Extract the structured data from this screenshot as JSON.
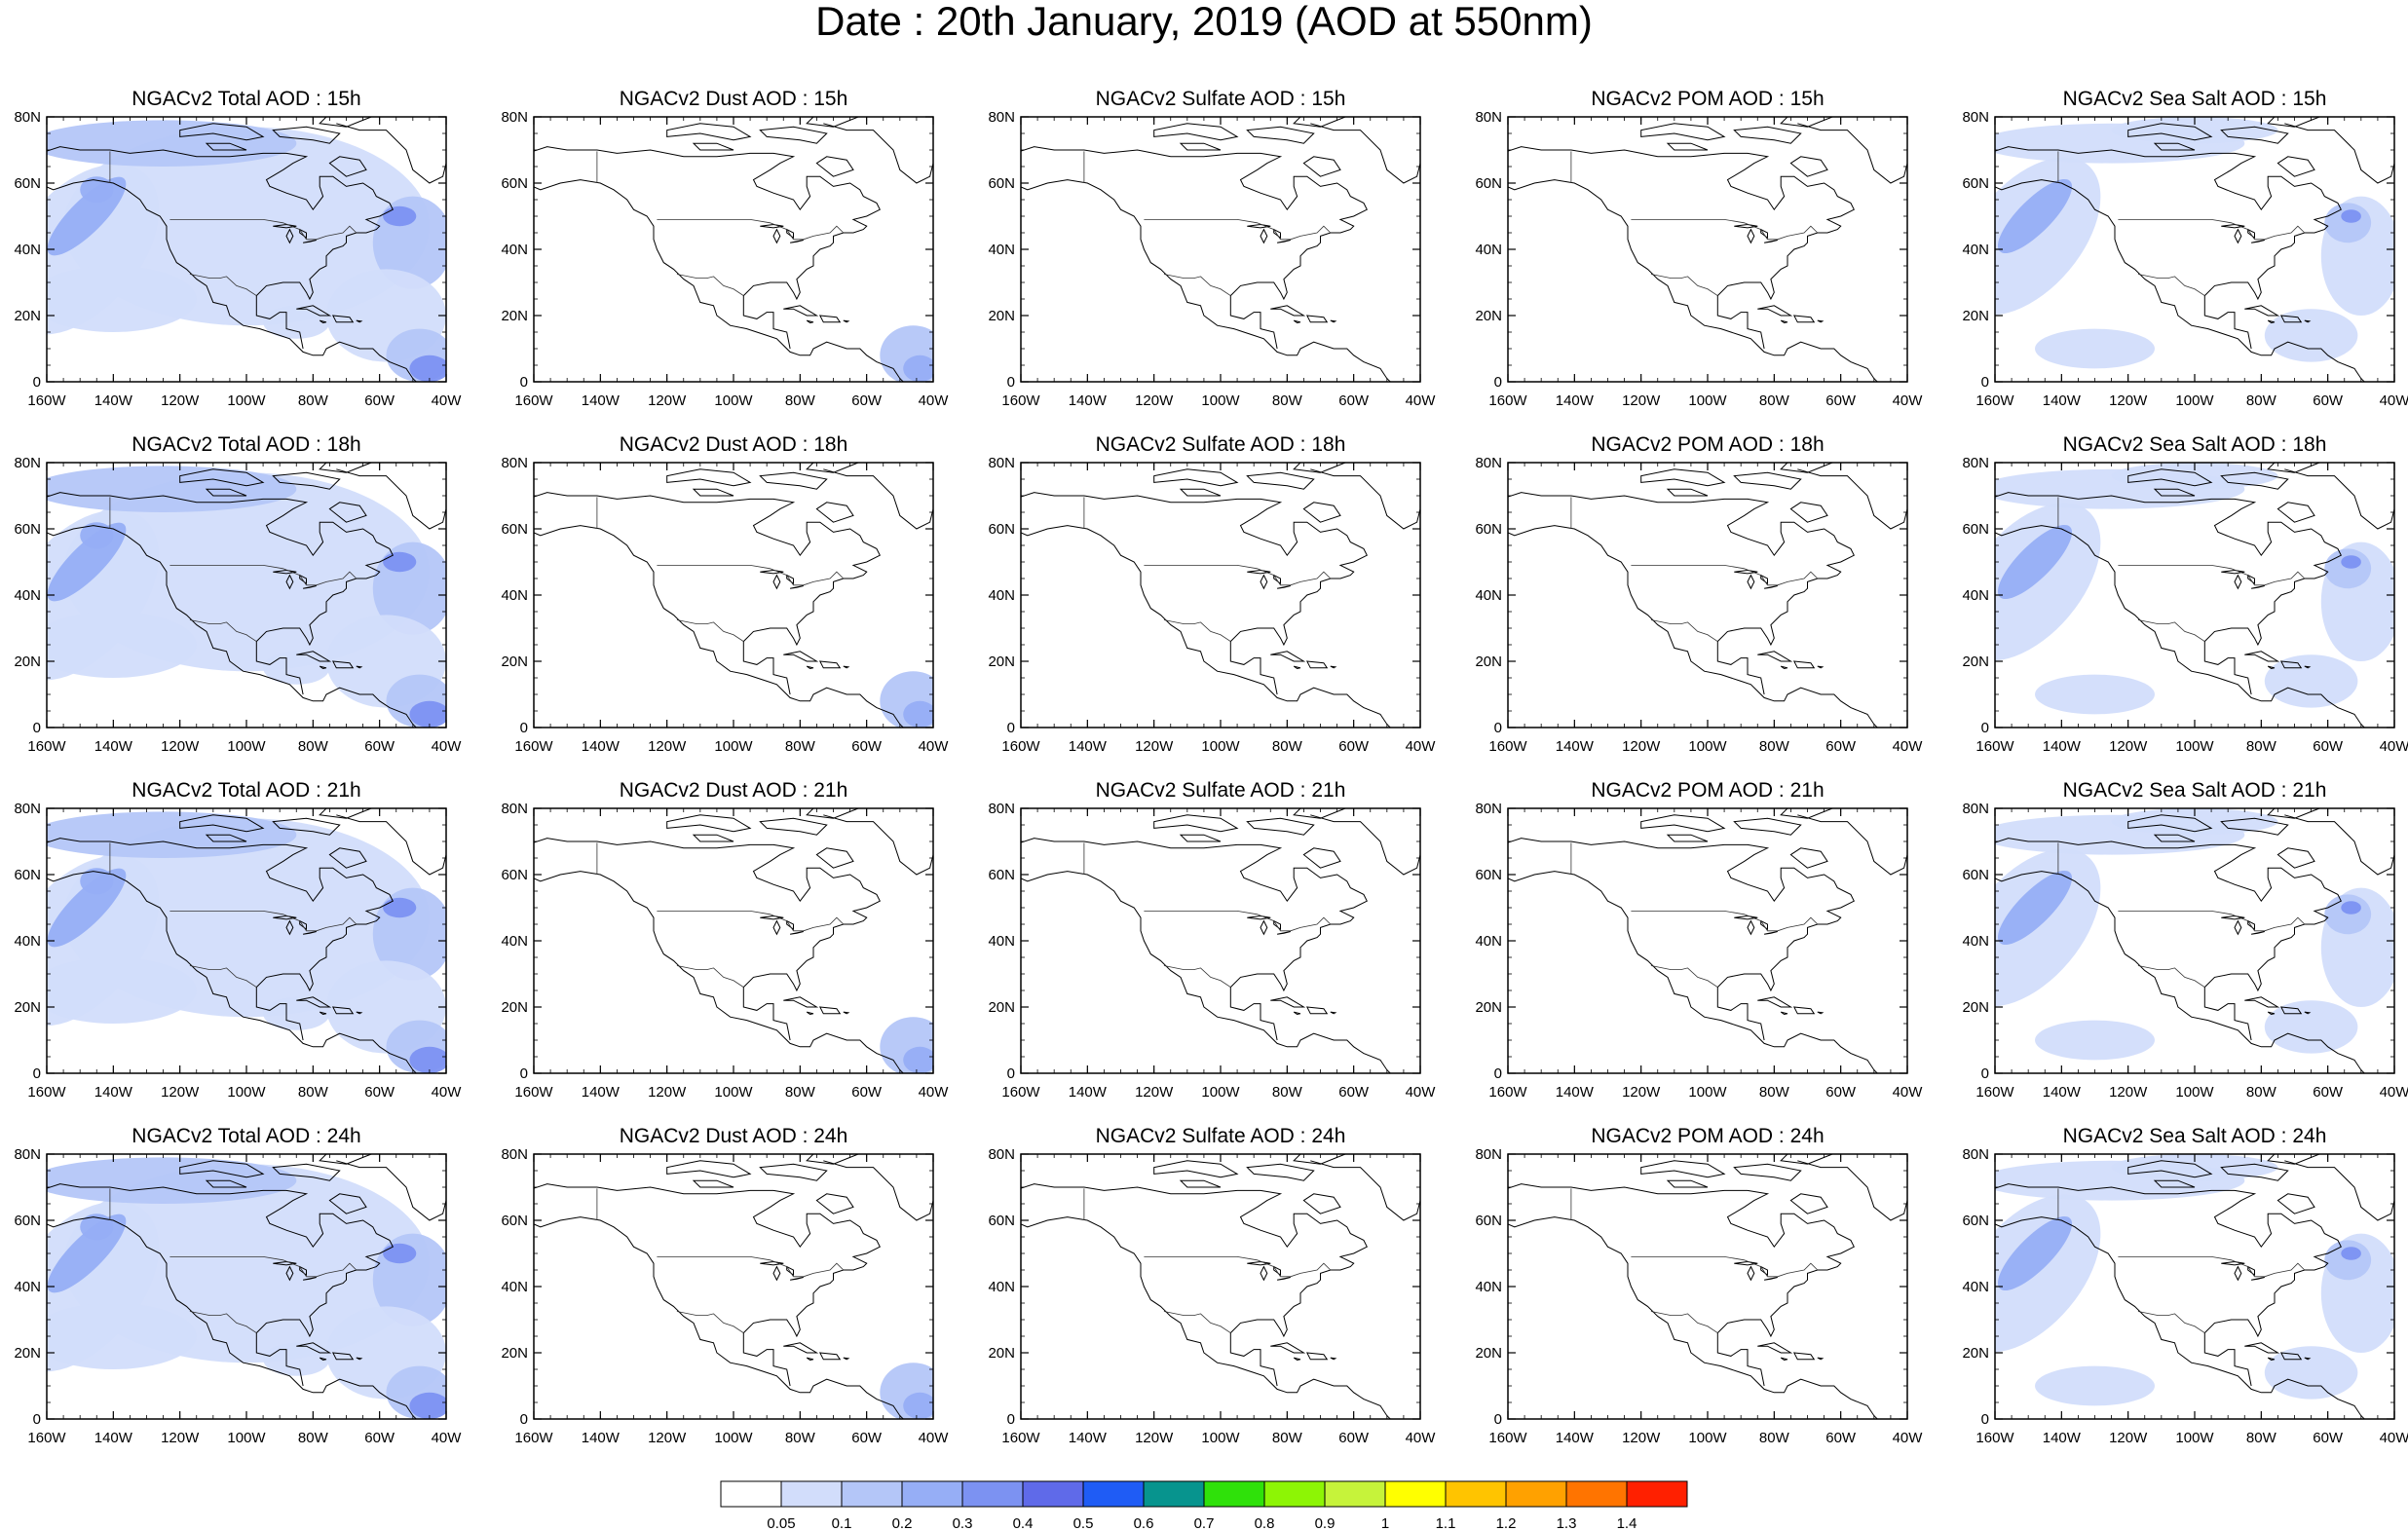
{
  "title": "Date : 20th January, 2019 (AOD at 550nm)",
  "panels": [
    {
      "title": "NGACv2 Total AOD : 15h",
      "field": "total"
    },
    {
      "title": "NGACv2 Dust AOD : 15h",
      "field": "dust"
    },
    {
      "title": "NGACv2 Sulfate AOD : 15h",
      "field": "sulfate"
    },
    {
      "title": "NGACv2 POM AOD : 15h",
      "field": "pom"
    },
    {
      "title": "NGACv2 Sea Salt AOD : 15h",
      "field": "seasalt"
    },
    {
      "title": "NGACv2 Total AOD : 18h",
      "field": "total"
    },
    {
      "title": "NGACv2 Dust AOD : 18h",
      "field": "dust"
    },
    {
      "title": "NGACv2 Sulfate AOD : 18h",
      "field": "sulfate"
    },
    {
      "title": "NGACv2 POM AOD : 18h",
      "field": "pom"
    },
    {
      "title": "NGACv2 Sea Salt AOD : 18h",
      "field": "seasalt"
    },
    {
      "title": "NGACv2 Total AOD : 21h",
      "field": "total"
    },
    {
      "title": "NGACv2 Dust AOD : 21h",
      "field": "dust"
    },
    {
      "title": "NGACv2 Sulfate AOD : 21h",
      "field": "sulfate"
    },
    {
      "title": "NGACv2 POM AOD : 21h",
      "field": "pom"
    },
    {
      "title": "NGACv2 Sea Salt AOD : 21h",
      "field": "seasalt"
    },
    {
      "title": "NGACv2 Total AOD : 24h",
      "field": "total"
    },
    {
      "title": "NGACv2 Dust AOD : 24h",
      "field": "dust"
    },
    {
      "title": "NGACv2 Sulfate AOD : 24h",
      "field": "sulfate"
    },
    {
      "title": "NGACv2 POM AOD : 24h",
      "field": "pom"
    },
    {
      "title": "NGACv2 Sea Salt  AOD : 24h",
      "field": "seasalt"
    }
  ],
  "axes": {
    "lon_labels": [
      "160W",
      "140W",
      "120W",
      "100W",
      "80W",
      "60W",
      "40W"
    ],
    "lat_labels": [
      "0",
      "20N",
      "40N",
      "60N",
      "80N"
    ],
    "lon_range": [
      -160,
      -40
    ],
    "lat_range": [
      0,
      80
    ]
  },
  "colorbar": {
    "labels": [
      "0.05",
      "0.1",
      "0.2",
      "0.3",
      "0.4",
      "0.5",
      "0.6",
      "0.7",
      "0.8",
      "0.9",
      "1",
      "1.1",
      "1.2",
      "1.3",
      "1.4"
    ],
    "colors": [
      "#ffffff",
      "#d2ddfb",
      "#b4c6f8",
      "#96aef6",
      "#7c92f2",
      "#5f6ae9",
      "#1f5cf5",
      "#07948e",
      "#2fe10a",
      "#8df505",
      "#c6f33a",
      "#ffff00",
      "#ffc400",
      "#ffa100",
      "#ff7400",
      "#ff2000"
    ]
  }
}
